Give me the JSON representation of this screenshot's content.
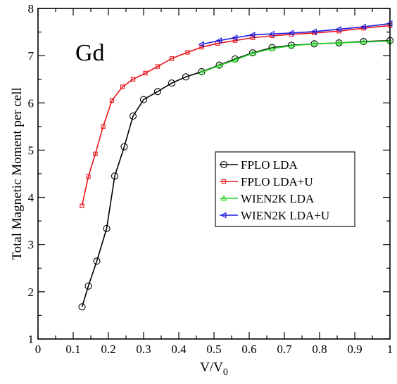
{
  "chart_data": {
    "type": "line",
    "title": "",
    "annotation": "Gd",
    "xlabel": "V/V",
    "xlabel_sub": "0",
    "ylabel": "Total Magnetic Moment per cell",
    "xlim": [
      0,
      1
    ],
    "ylim": [
      1,
      8
    ],
    "xticks": [
      0,
      0.1,
      0.2,
      0.3,
      0.4,
      0.5,
      0.6,
      0.7,
      0.8,
      0.9,
      1
    ],
    "xtick_labels": [
      "0",
      "0.1",
      "0.2",
      "0.3",
      "0.4",
      "0.5",
      "0.6",
      "0.7",
      "0.8",
      "0.9",
      "1"
    ],
    "yticks": [
      1,
      2,
      3,
      4,
      5,
      6,
      7,
      8
    ],
    "ytick_labels": [
      "1",
      "2",
      "3",
      "4",
      "5",
      "6",
      "7",
      "8"
    ],
    "grid": false,
    "legend_position": "center-right",
    "series": [
      {
        "name": "FPLO LDA",
        "color": "#000000",
        "marker": "circle",
        "x": [
          0.125,
          0.143,
          0.167,
          0.195,
          0.218,
          0.245,
          0.27,
          0.3,
          0.34,
          0.38,
          0.42,
          0.465,
          0.515,
          0.56,
          0.61,
          0.665,
          0.72,
          0.785,
          0.855,
          0.925,
          1.0
        ],
        "y": [
          1.68,
          2.12,
          2.65,
          3.34,
          4.45,
          5.07,
          5.72,
          6.07,
          6.24,
          6.42,
          6.55,
          6.66,
          6.8,
          6.93,
          7.06,
          7.17,
          7.22,
          7.25,
          7.27,
          7.3,
          7.32
        ]
      },
      {
        "name": "FPLO LDA+U",
        "color": "#e8141b",
        "marker": "square",
        "x": [
          0.125,
          0.143,
          0.163,
          0.185,
          0.21,
          0.24,
          0.27,
          0.305,
          0.34,
          0.38,
          0.425,
          0.465,
          0.51,
          0.56,
          0.61,
          0.665,
          0.72,
          0.785,
          0.855,
          0.925,
          1.0
        ],
        "y": [
          3.82,
          4.44,
          4.92,
          5.5,
          6.05,
          6.34,
          6.5,
          6.63,
          6.77,
          6.94,
          7.07,
          7.18,
          7.26,
          7.32,
          7.38,
          7.42,
          7.45,
          7.48,
          7.52,
          7.58,
          7.64
        ]
      },
      {
        "name": "WIEN2K LDA",
        "color": "#22d422",
        "marker": "triangle-up",
        "x": [
          0.465,
          0.515,
          0.56,
          0.61,
          0.665,
          0.72,
          0.785,
          0.855,
          0.925,
          1.0
        ],
        "y": [
          6.65,
          6.79,
          6.91,
          7.05,
          7.15,
          7.21,
          7.25,
          7.27,
          7.29,
          7.31
        ]
      },
      {
        "name": "WIEN2K LDA+U",
        "color": "#1a1ae0",
        "marker": "triangle-left",
        "x": [
          0.465,
          0.515,
          0.56,
          0.61,
          0.665,
          0.72,
          0.785,
          0.855,
          0.925,
          1.0
        ],
        "y": [
          7.24,
          7.32,
          7.38,
          7.44,
          7.46,
          7.48,
          7.51,
          7.56,
          7.61,
          7.68
        ]
      }
    ]
  }
}
